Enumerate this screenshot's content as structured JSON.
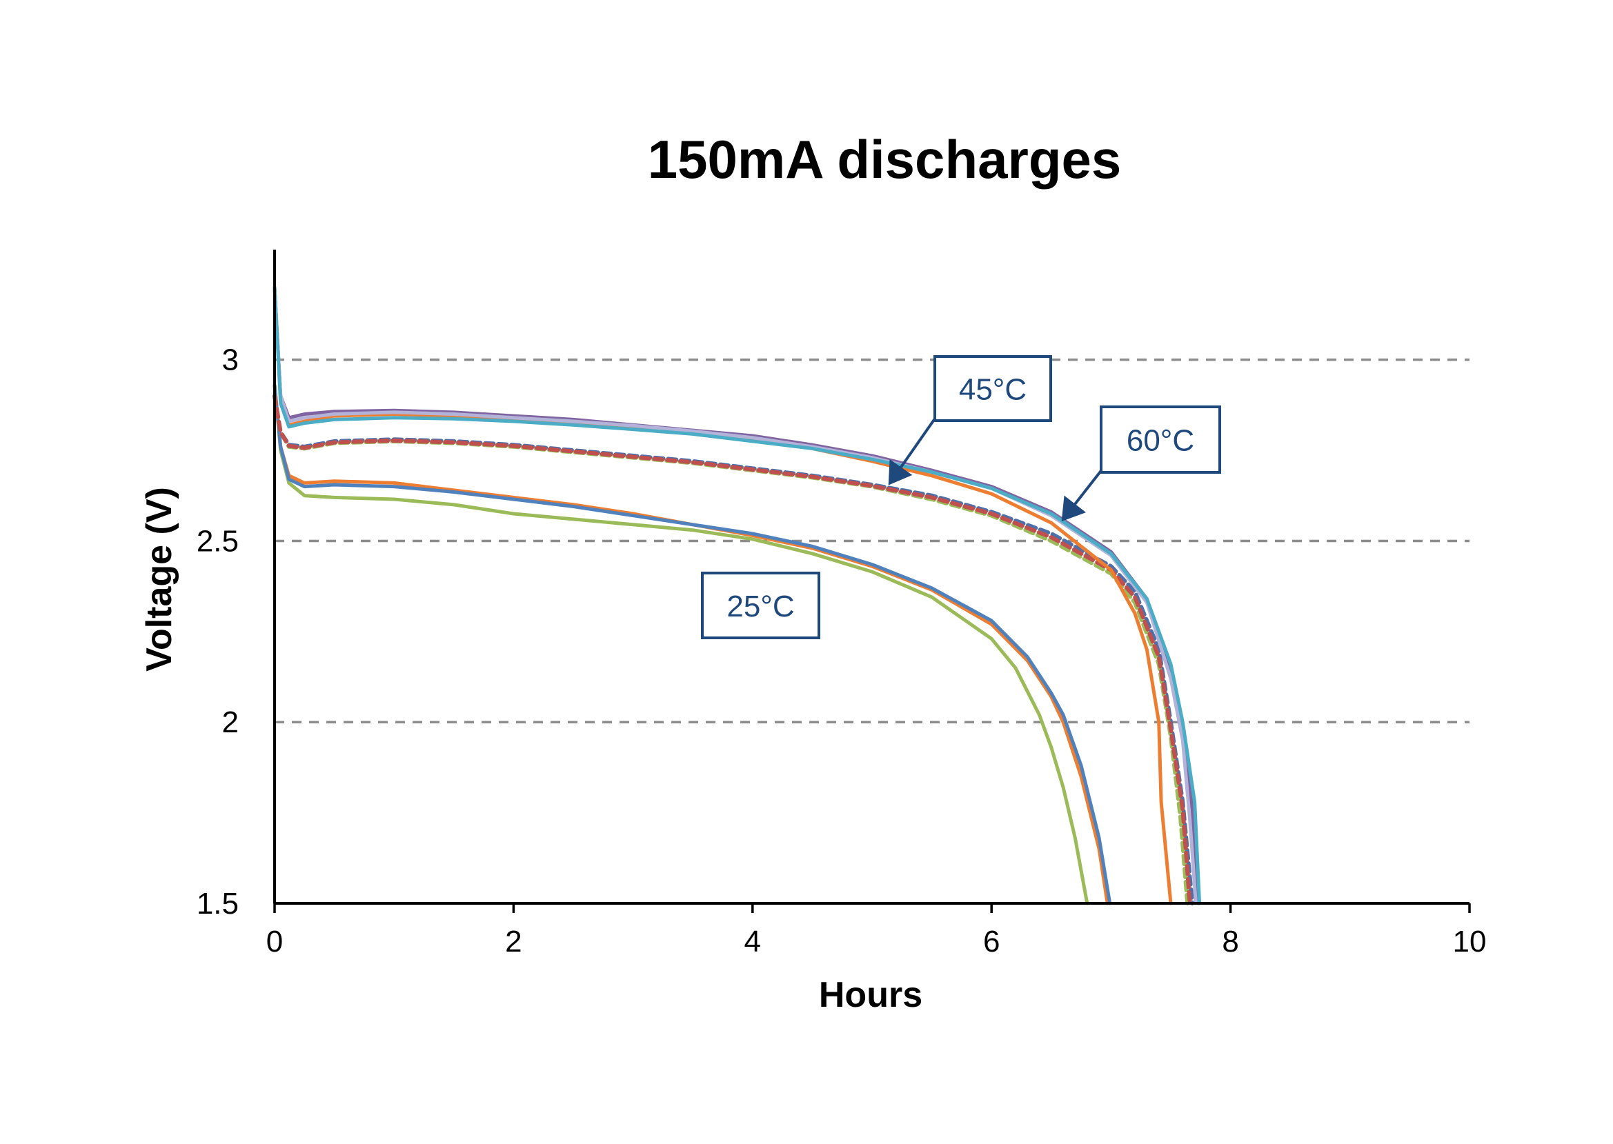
{
  "chart_data": {
    "type": "line",
    "title": "150mA discharges",
    "xlabel": "Hours",
    "ylabel": "Voltage (V)",
    "xlim": [
      0,
      10
    ],
    "ylim": [
      1.5,
      3.3
    ],
    "x_ticks": [
      0,
      2,
      4,
      6,
      8,
      10
    ],
    "x_tick_labels": [
      "0",
      "2",
      "4",
      "6",
      "8",
      "10"
    ],
    "y_ticks": [
      1.5,
      2,
      2.5,
      3
    ],
    "y_tick_labels": [
      "1.5",
      "2",
      "2.5",
      "3"
    ],
    "grid": "horizontal dashed",
    "legend": "none",
    "series": [
      {
        "name": "25°C cell A",
        "group": "25°C",
        "color": "#9BBB59",
        "dash": false,
        "points": [
          [
            0,
            2.93
          ],
          [
            0.05,
            2.75
          ],
          [
            0.12,
            2.66
          ],
          [
            0.25,
            2.625
          ],
          [
            0.5,
            2.62
          ],
          [
            1,
            2.615
          ],
          [
            1.5,
            2.6
          ],
          [
            2,
            2.575
          ],
          [
            2.5,
            2.56
          ],
          [
            3,
            2.545
          ],
          [
            3.5,
            2.53
          ],
          [
            4,
            2.505
          ],
          [
            4.5,
            2.465
          ],
          [
            5,
            2.415
          ],
          [
            5.5,
            2.345
          ],
          [
            6,
            2.23
          ],
          [
            6.2,
            2.15
          ],
          [
            6.4,
            2.02
          ],
          [
            6.5,
            1.93
          ],
          [
            6.6,
            1.82
          ],
          [
            6.7,
            1.68
          ],
          [
            6.8,
            1.5
          ]
        ]
      },
      {
        "name": "25°C cell B",
        "group": "25°C",
        "color": "#ED7D31",
        "dash": false,
        "points": [
          [
            0,
            2.93
          ],
          [
            0.05,
            2.76
          ],
          [
            0.12,
            2.68
          ],
          [
            0.25,
            2.66
          ],
          [
            0.5,
            2.665
          ],
          [
            1,
            2.66
          ],
          [
            1.5,
            2.64
          ],
          [
            2,
            2.62
          ],
          [
            2.5,
            2.6
          ],
          [
            3,
            2.575
          ],
          [
            3.5,
            2.545
          ],
          [
            4,
            2.515
          ],
          [
            4.5,
            2.48
          ],
          [
            5,
            2.43
          ],
          [
            5.5,
            2.365
          ],
          [
            6,
            2.27
          ],
          [
            6.3,
            2.17
          ],
          [
            6.5,
            2.07
          ],
          [
            6.6,
            2.0
          ],
          [
            6.75,
            1.85
          ],
          [
            6.9,
            1.65
          ],
          [
            6.97,
            1.5
          ]
        ]
      },
      {
        "name": "25°C cell C",
        "group": "25°C",
        "color": "#4F81BD",
        "dash": false,
        "points": [
          [
            0,
            2.93
          ],
          [
            0.05,
            2.76
          ],
          [
            0.12,
            2.67
          ],
          [
            0.25,
            2.65
          ],
          [
            0.5,
            2.655
          ],
          [
            1,
            2.65
          ],
          [
            1.5,
            2.635
          ],
          [
            2,
            2.615
          ],
          [
            2.5,
            2.595
          ],
          [
            3,
            2.57
          ],
          [
            3.5,
            2.545
          ],
          [
            4,
            2.52
          ],
          [
            4.5,
            2.485
          ],
          [
            5,
            2.435
          ],
          [
            5.5,
            2.37
          ],
          [
            6,
            2.28
          ],
          [
            6.3,
            2.18
          ],
          [
            6.5,
            2.08
          ],
          [
            6.6,
            2.02
          ],
          [
            6.75,
            1.88
          ],
          [
            6.9,
            1.68
          ],
          [
            6.99,
            1.5
          ]
        ]
      },
      {
        "name": "45°C cell A",
        "group": "45°C",
        "color": "#4F6FA8",
        "dash": true,
        "points": [
          [
            0,
            2.9
          ],
          [
            0.05,
            2.8
          ],
          [
            0.12,
            2.765
          ],
          [
            0.25,
            2.76
          ],
          [
            0.5,
            2.775
          ],
          [
            1,
            2.78
          ],
          [
            1.5,
            2.775
          ],
          [
            2,
            2.765
          ],
          [
            2.5,
            2.75
          ],
          [
            3,
            2.735
          ],
          [
            3.5,
            2.72
          ],
          [
            4,
            2.7
          ],
          [
            4.5,
            2.68
          ],
          [
            5,
            2.655
          ],
          [
            5.5,
            2.625
          ],
          [
            6,
            2.58
          ],
          [
            6.5,
            2.52
          ],
          [
            7,
            2.43
          ],
          [
            7.2,
            2.36
          ],
          [
            7.4,
            2.2
          ],
          [
            7.5,
            2.0
          ],
          [
            7.6,
            1.78
          ],
          [
            7.68,
            1.5
          ]
        ]
      },
      {
        "name": "45°C cell B",
        "group": "45°C",
        "color": "#9BBB59",
        "dash": true,
        "points": [
          [
            0,
            2.9
          ],
          [
            0.05,
            2.8
          ],
          [
            0.12,
            2.76
          ],
          [
            0.25,
            2.755
          ],
          [
            0.5,
            2.77
          ],
          [
            1,
            2.775
          ],
          [
            1.5,
            2.77
          ],
          [
            2,
            2.76
          ],
          [
            2.5,
            2.745
          ],
          [
            3,
            2.73
          ],
          [
            3.5,
            2.715
          ],
          [
            4,
            2.695
          ],
          [
            4.5,
            2.675
          ],
          [
            5,
            2.65
          ],
          [
            5.5,
            2.615
          ],
          [
            6,
            2.57
          ],
          [
            6.5,
            2.5
          ],
          [
            7,
            2.41
          ],
          [
            7.2,
            2.33
          ],
          [
            7.4,
            2.16
          ],
          [
            7.5,
            1.96
          ],
          [
            7.58,
            1.74
          ],
          [
            7.64,
            1.5
          ]
        ]
      },
      {
        "name": "45°C cell C",
        "group": "45°C",
        "color": "#C0504D",
        "dash": true,
        "points": [
          [
            0,
            2.9
          ],
          [
            0.05,
            2.8
          ],
          [
            0.12,
            2.762
          ],
          [
            0.25,
            2.757
          ],
          [
            0.5,
            2.772
          ],
          [
            1,
            2.777
          ],
          [
            1.5,
            2.772
          ],
          [
            2,
            2.762
          ],
          [
            2.5,
            2.747
          ],
          [
            3,
            2.732
          ],
          [
            3.5,
            2.717
          ],
          [
            4,
            2.697
          ],
          [
            4.5,
            2.677
          ],
          [
            5,
            2.652
          ],
          [
            5.5,
            2.62
          ],
          [
            6,
            2.575
          ],
          [
            6.5,
            2.51
          ],
          [
            7,
            2.42
          ],
          [
            7.2,
            2.345
          ],
          [
            7.4,
            2.18
          ],
          [
            7.5,
            1.98
          ],
          [
            7.6,
            1.76
          ],
          [
            7.66,
            1.5
          ]
        ]
      },
      {
        "name": "60°C cell A",
        "group": "60°C",
        "color": "#ED7D31",
        "dash": false,
        "points": [
          [
            0,
            3.2
          ],
          [
            0.05,
            2.9
          ],
          [
            0.12,
            2.82
          ],
          [
            0.25,
            2.83
          ],
          [
            0.5,
            2.845
          ],
          [
            1,
            2.85
          ],
          [
            1.5,
            2.845
          ],
          [
            2,
            2.835
          ],
          [
            2.5,
            2.825
          ],
          [
            3,
            2.815
          ],
          [
            3.5,
            2.8
          ],
          [
            4,
            2.78
          ],
          [
            4.5,
            2.755
          ],
          [
            5,
            2.72
          ],
          [
            5.5,
            2.68
          ],
          [
            6,
            2.63
          ],
          [
            6.5,
            2.55
          ],
          [
            7,
            2.42
          ],
          [
            7.2,
            2.3
          ],
          [
            7.3,
            2.2
          ],
          [
            7.4,
            2.0
          ],
          [
            7.42,
            1.78
          ],
          [
            7.5,
            1.5
          ]
        ]
      },
      {
        "name": "60°C cell B",
        "group": "60°C",
        "color": "#8064A2",
        "dash": false,
        "points": [
          [
            0,
            3.2
          ],
          [
            0.05,
            2.9
          ],
          [
            0.12,
            2.84
          ],
          [
            0.25,
            2.85
          ],
          [
            0.5,
            2.857
          ],
          [
            1,
            2.86
          ],
          [
            1.5,
            2.855
          ],
          [
            2,
            2.845
          ],
          [
            2.5,
            2.835
          ],
          [
            3,
            2.82
          ],
          [
            3.5,
            2.805
          ],
          [
            4,
            2.79
          ],
          [
            4.5,
            2.765
          ],
          [
            5,
            2.735
          ],
          [
            5.5,
            2.695
          ],
          [
            6,
            2.65
          ],
          [
            6.5,
            2.58
          ],
          [
            7,
            2.47
          ],
          [
            7.3,
            2.34
          ],
          [
            7.5,
            2.13
          ],
          [
            7.6,
            1.98
          ],
          [
            7.68,
            1.76
          ],
          [
            7.73,
            1.5
          ]
        ]
      },
      {
        "name": "60°C cell C",
        "group": "60°C",
        "color": "#B3B3D9",
        "dash": false,
        "points": [
          [
            0,
            3.2
          ],
          [
            0.05,
            2.9
          ],
          [
            0.12,
            2.83
          ],
          [
            0.25,
            2.84
          ],
          [
            0.5,
            2.85
          ],
          [
            1,
            2.855
          ],
          [
            1.5,
            2.85
          ],
          [
            2,
            2.84
          ],
          [
            2.5,
            2.83
          ],
          [
            3,
            2.818
          ],
          [
            3.5,
            2.803
          ],
          [
            4,
            2.785
          ],
          [
            4.5,
            2.76
          ],
          [
            5,
            2.73
          ],
          [
            5.5,
            2.69
          ],
          [
            6,
            2.645
          ],
          [
            6.5,
            2.57
          ],
          [
            7,
            2.46
          ],
          [
            7.3,
            2.33
          ],
          [
            7.5,
            2.12
          ],
          [
            7.6,
            1.95
          ],
          [
            7.66,
            1.73
          ],
          [
            7.71,
            1.5
          ]
        ]
      },
      {
        "name": "60°C cell D",
        "group": "60°C",
        "color": "#4BACC6",
        "dash": false,
        "points": [
          [
            0,
            3.2
          ],
          [
            0.05,
            2.88
          ],
          [
            0.12,
            2.815
          ],
          [
            0.25,
            2.825
          ],
          [
            0.5,
            2.835
          ],
          [
            1,
            2.84
          ],
          [
            1.5,
            2.837
          ],
          [
            2,
            2.83
          ],
          [
            2.5,
            2.82
          ],
          [
            3,
            2.808
          ],
          [
            3.5,
            2.795
          ],
          [
            4,
            2.775
          ],
          [
            4.5,
            2.755
          ],
          [
            5,
            2.725
          ],
          [
            5.5,
            2.69
          ],
          [
            6,
            2.645
          ],
          [
            6.5,
            2.575
          ],
          [
            7,
            2.465
          ],
          [
            7.3,
            2.34
          ],
          [
            7.5,
            2.16
          ],
          [
            7.6,
            2.0
          ],
          [
            7.7,
            1.78
          ],
          [
            7.74,
            1.5
          ]
        ]
      }
    ],
    "annotations": [
      {
        "text": "45°C",
        "arrow_to": [
          5.15,
          2.66
        ]
      },
      {
        "text": "60°C",
        "arrow_to": [
          6.6,
          2.56
        ]
      },
      {
        "text": "25°C",
        "arrow_to": null
      }
    ]
  }
}
